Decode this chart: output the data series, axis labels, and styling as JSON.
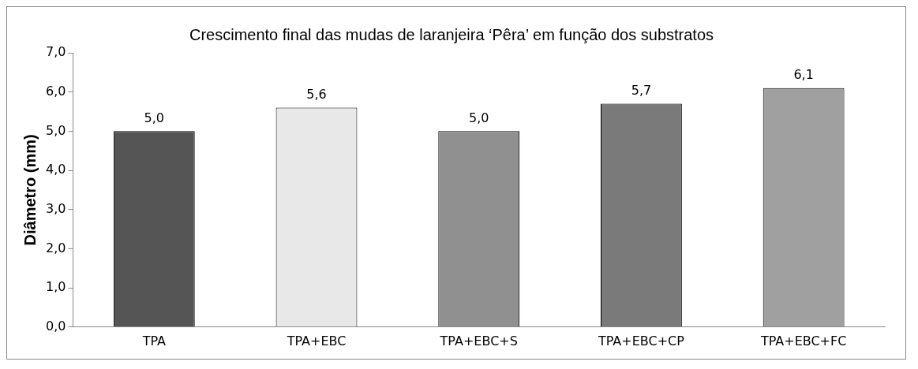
{
  "chart_data": {
    "type": "bar",
    "title": "Crescimento final das mudas de laranjeira ‘Pêra’ em função dos substratos",
    "ylabel": "Diâmetro (mm)",
    "categories": [
      "TPA",
      "TPA+EBC",
      "TPA+EBC+S",
      "TPA+EBC+CP",
      "TPA+EBC+FC"
    ],
    "values": [
      5.0,
      5.6,
      5.0,
      5.7,
      6.1
    ],
    "value_labels": [
      "5,0",
      "5,6",
      "5,0",
      "5,7",
      "6,1"
    ],
    "colors": [
      "#555555",
      "#e8e8e8",
      "#909090",
      "#7a7a7a",
      "#a0a0a0"
    ],
    "ylim": [
      0,
      7
    ],
    "yticks": [
      {
        "value": 0,
        "label": "0,0"
      },
      {
        "value": 1,
        "label": "1,0"
      },
      {
        "value": 2,
        "label": "2,0"
      },
      {
        "value": 3,
        "label": "3,0"
      },
      {
        "value": 4,
        "label": "4,0"
      },
      {
        "value": 5,
        "label": "5,0"
      },
      {
        "value": 6,
        "label": "6,0"
      },
      {
        "value": 7,
        "label": "7,0"
      }
    ],
    "grid": false,
    "legend": false
  }
}
